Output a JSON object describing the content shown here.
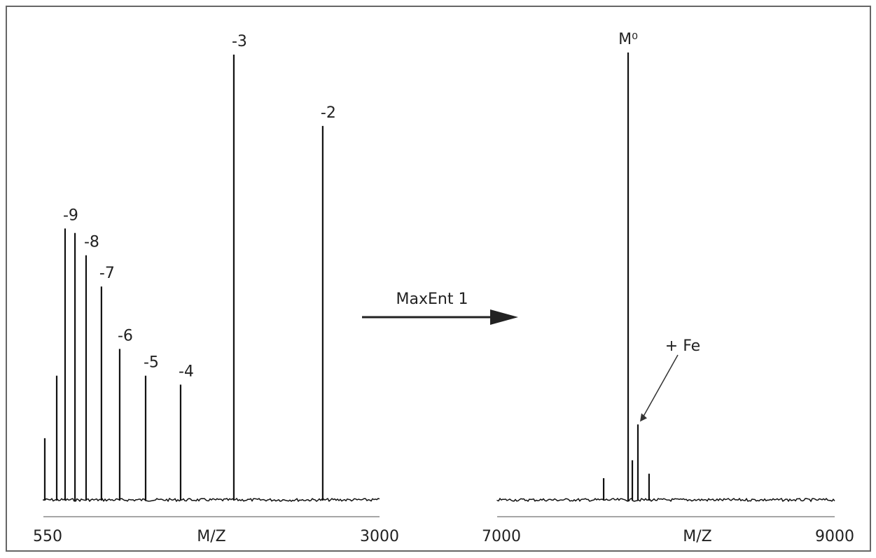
{
  "chart_data": [
    {
      "type": "stem",
      "xlabel": "M/Z",
      "xlim": [
        550,
        3000
      ],
      "xticks": [
        550,
        3000
      ],
      "ylim": [
        0,
        100
      ],
      "x": [
        560,
        647,
        708,
        780,
        861,
        973,
        1106,
        1295,
        1550,
        1938,
        2586
      ],
      "values": [
        14,
        28,
        61,
        60,
        55,
        48,
        34,
        28,
        26,
        100,
        84
      ],
      "labels": [
        null,
        null,
        "-9",
        null,
        "-8",
        "-7",
        "-6",
        "-5",
        "-4",
        "-3",
        "-2"
      ],
      "color": "#111111"
    },
    {
      "type": "stem",
      "xlabel": "M/Z",
      "xlim": [
        7000,
        9000
      ],
      "xticks": [
        7000,
        9000
      ],
      "ylim": [
        0,
        100
      ],
      "x": [
        7631,
        7776,
        7834,
        7801,
        7900
      ],
      "values": [
        5,
        100,
        17,
        9,
        6
      ],
      "labels": [
        null,
        "M⁰",
        null,
        null,
        null
      ],
      "annotation": "+ Fe",
      "color": "#111111"
    }
  ],
  "transform_label": "MaxEnt 1"
}
